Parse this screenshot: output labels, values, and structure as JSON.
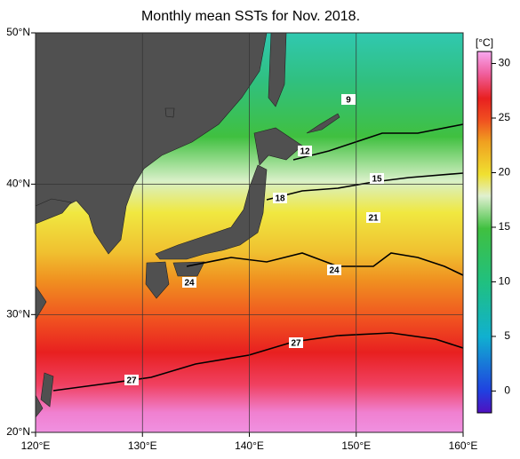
{
  "chart_data": {
    "type": "map",
    "title": "Monthly mean SSTs for Nov. 2018.",
    "xlim": [
      120,
      160
    ],
    "xticks": [
      {
        "value": 120,
        "label": "120°E"
      },
      {
        "value": 130,
        "label": "130°E"
      },
      {
        "value": 140,
        "label": "140°E"
      },
      {
        "value": 150,
        "label": "150°E"
      },
      {
        "value": 160,
        "label": "160°E"
      }
    ],
    "ylim": [
      20,
      50
    ],
    "yticks": [
      {
        "value": 20,
        "label": "20°N"
      },
      {
        "value": 30,
        "label": "30°N"
      },
      {
        "value": 40,
        "label": "40°N"
      },
      {
        "value": 50,
        "label": "50°N"
      }
    ],
    "grid": true,
    "colorbar": {
      "label": "[°C]",
      "lim": [
        -2,
        31.1
      ],
      "ticks": [
        0,
        5,
        10,
        15,
        20,
        25,
        30
      ]
    },
    "contour_labels": [
      9,
      12,
      15,
      18,
      21,
      24,
      24,
      27,
      27
    ]
  }
}
